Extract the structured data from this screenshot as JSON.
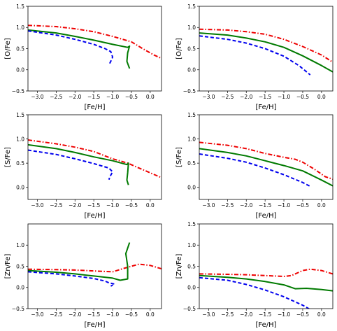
{
  "chart_data": [
    {
      "type": "line",
      "panel": "top-left",
      "xlabel": "[Fe/H]",
      "ylabel": "[O/Fe]",
      "xlim": [
        -3.25,
        0.3
      ],
      "ylim": [
        -0.5,
        1.5
      ],
      "xticks": [
        "-3.0",
        "-2.5",
        "-2.0",
        "-1.5",
        "-1.0",
        "-0.5",
        "0.0"
      ],
      "yticks": [
        "-0.5",
        "0.0",
        "0.5",
        "1.0",
        "1.5"
      ],
      "series": [
        {
          "style": "red-dashdot",
          "points": [
            [
              -3.25,
              1.05
            ],
            [
              -2.5,
              1.02
            ],
            [
              -2.0,
              0.97
            ],
            [
              -1.5,
              0.9
            ],
            [
              -1.0,
              0.79
            ],
            [
              -0.5,
              0.66
            ],
            [
              -0.2,
              0.5
            ],
            [
              0.1,
              0.35
            ],
            [
              0.3,
              0.27
            ]
          ]
        },
        {
          "style": "green-solid",
          "points": [
            [
              -3.25,
              0.94
            ],
            [
              -2.5,
              0.87
            ],
            [
              -2.0,
              0.79
            ],
            [
              -1.5,
              0.7
            ],
            [
              -1.0,
              0.6
            ],
            [
              -0.6,
              0.53
            ],
            [
              -0.55,
              0.56
            ],
            [
              -0.6,
              0.4
            ],
            [
              -0.62,
              0.2
            ],
            [
              -0.55,
              0.03
            ]
          ]
        },
        {
          "style": "blue-dashed",
          "points": [
            [
              -3.25,
              0.92
            ],
            [
              -2.5,
              0.82
            ],
            [
              -2.0,
              0.72
            ],
            [
              -1.5,
              0.6
            ],
            [
              -1.2,
              0.5
            ],
            [
              -1.05,
              0.43
            ],
            [
              -1.0,
              0.3
            ],
            [
              -1.05,
              0.2
            ],
            [
              -1.1,
              0.11
            ]
          ]
        }
      ]
    },
    {
      "type": "line",
      "panel": "top-right",
      "xlabel": "[Fe/H]",
      "ylabel": "[O/Fe]",
      "xlim": [
        -3.25,
        0.3
      ],
      "ylim": [
        -0.5,
        1.5
      ],
      "xticks": [
        "-3.0",
        "-2.5",
        "-2.0",
        "-1.5",
        "-1.0",
        "-0.5",
        "0.0"
      ],
      "yticks": [
        "-0.5",
        "0.0",
        "0.5",
        "1.0",
        "1.5"
      ],
      "series": [
        {
          "style": "red-dashdot",
          "points": [
            [
              -3.25,
              0.96
            ],
            [
              -2.5,
              0.94
            ],
            [
              -2.0,
              0.9
            ],
            [
              -1.5,
              0.84
            ],
            [
              -1.0,
              0.72
            ],
            [
              -0.5,
              0.55
            ],
            [
              0.0,
              0.35
            ],
            [
              0.3,
              0.18
            ]
          ]
        },
        {
          "style": "green-solid",
          "points": [
            [
              -3.25,
              0.87
            ],
            [
              -2.5,
              0.82
            ],
            [
              -2.0,
              0.75
            ],
            [
              -1.5,
              0.66
            ],
            [
              -1.0,
              0.53
            ],
            [
              -0.5,
              0.33
            ],
            [
              0.0,
              0.1
            ],
            [
              0.3,
              -0.05
            ]
          ]
        },
        {
          "style": "blue-dashed",
          "points": [
            [
              -3.25,
              0.8
            ],
            [
              -2.5,
              0.72
            ],
            [
              -2.0,
              0.63
            ],
            [
              -1.5,
              0.5
            ],
            [
              -1.0,
              0.32
            ],
            [
              -0.6,
              0.1
            ],
            [
              -0.3,
              -0.12
            ]
          ]
        }
      ]
    },
    {
      "type": "line",
      "panel": "middle-left",
      "xlabel": "[Fe/H]",
      "ylabel": "[S/Fe]",
      "xlim": [
        -3.25,
        0.3
      ],
      "ylim": [
        -0.25,
        1.5
      ],
      "xticks": [
        "-3.0",
        "-2.5",
        "-2.0",
        "-1.5",
        "-1.0",
        "-0.5",
        "0.0"
      ],
      "yticks": [
        "0.0",
        "0.5",
        "1.0",
        "1.5"
      ],
      "series": [
        {
          "style": "red-dashdot",
          "points": [
            [
              -3.25,
              0.98
            ],
            [
              -2.5,
              0.9
            ],
            [
              -2.0,
              0.83
            ],
            [
              -1.5,
              0.74
            ],
            [
              -1.2,
              0.65
            ],
            [
              -1.0,
              0.59
            ],
            [
              -0.6,
              0.5
            ],
            [
              -0.3,
              0.4
            ],
            [
              0.0,
              0.3
            ],
            [
              0.3,
              0.2
            ]
          ]
        },
        {
          "style": "green-solid",
          "points": [
            [
              -3.25,
              0.88
            ],
            [
              -2.5,
              0.8
            ],
            [
              -2.0,
              0.72
            ],
            [
              -1.5,
              0.63
            ],
            [
              -1.0,
              0.55
            ],
            [
              -0.62,
              0.47
            ],
            [
              -0.58,
              0.5
            ],
            [
              -0.6,
              0.3
            ],
            [
              -0.62,
              0.15
            ],
            [
              -0.58,
              0.05
            ]
          ]
        },
        {
          "style": "blue-dashed",
          "points": [
            [
              -3.25,
              0.77
            ],
            [
              -2.5,
              0.68
            ],
            [
              -2.0,
              0.59
            ],
            [
              -1.5,
              0.49
            ],
            [
              -1.1,
              0.4
            ],
            [
              -1.0,
              0.32
            ],
            [
              -1.05,
              0.25
            ],
            [
              -1.1,
              0.16
            ]
          ]
        }
      ]
    },
    {
      "type": "line",
      "panel": "middle-right",
      "xlabel": "[Fe/H]",
      "ylabel": "[S/Fe]",
      "xlim": [
        -3.25,
        0.3
      ],
      "ylim": [
        -0.25,
        1.5
      ],
      "xticks": [
        "-3.0",
        "-2.5",
        "-2.0",
        "-1.5",
        "-1.0",
        "-0.5",
        "0.0"
      ],
      "yticks": [
        "0.0",
        "0.5",
        "1.0",
        "1.5"
      ],
      "series": [
        {
          "style": "red-dashdot",
          "points": [
            [
              -3.25,
              0.93
            ],
            [
              -2.5,
              0.87
            ],
            [
              -2.0,
              0.8
            ],
            [
              -1.5,
              0.7
            ],
            [
              -1.0,
              0.62
            ],
            [
              -0.7,
              0.58
            ],
            [
              -0.5,
              0.52
            ],
            [
              -0.2,
              0.38
            ],
            [
              0.1,
              0.22
            ],
            [
              0.3,
              0.17
            ]
          ]
        },
        {
          "style": "green-solid",
          "points": [
            [
              -3.25,
              0.8
            ],
            [
              -2.5,
              0.72
            ],
            [
              -2.0,
              0.65
            ],
            [
              -1.5,
              0.55
            ],
            [
              -1.0,
              0.45
            ],
            [
              -0.5,
              0.34
            ],
            [
              0.0,
              0.15
            ],
            [
              0.3,
              0.03
            ]
          ]
        },
        {
          "style": "blue-dashed",
          "points": [
            [
              -3.25,
              0.69
            ],
            [
              -2.5,
              0.6
            ],
            [
              -2.0,
              0.52
            ],
            [
              -1.5,
              0.4
            ],
            [
              -1.0,
              0.26
            ],
            [
              -0.5,
              0.1
            ],
            [
              -0.3,
              0.02
            ]
          ]
        }
      ]
    },
    {
      "type": "line",
      "panel": "bottom-left",
      "xlabel": "[Fe/H]",
      "ylabel": "[Zn/Fe]",
      "xlim": [
        -3.25,
        0.3
      ],
      "ylim": [
        -0.5,
        1.5
      ],
      "xticks": [
        "-3.0",
        "-2.5",
        "-2.0",
        "-1.5",
        "-1.0",
        "-0.5",
        "0.0"
      ],
      "yticks": [
        "-0.5",
        "0.0",
        "0.5",
        "1.0"
      ],
      "series": [
        {
          "style": "red-dashdot",
          "points": [
            [
              -3.25,
              0.43
            ],
            [
              -2.5,
              0.42
            ],
            [
              -2.0,
              0.41
            ],
            [
              -1.5,
              0.39
            ],
            [
              -1.0,
              0.37
            ],
            [
              -0.7,
              0.45
            ],
            [
              -0.3,
              0.55
            ],
            [
              0.0,
              0.52
            ],
            [
              0.3,
              0.44
            ]
          ]
        },
        {
          "style": "green-solid",
          "points": [
            [
              -3.25,
              0.4
            ],
            [
              -2.5,
              0.36
            ],
            [
              -2.0,
              0.32
            ],
            [
              -1.5,
              0.27
            ],
            [
              -1.0,
              0.22
            ],
            [
              -0.8,
              0.17
            ],
            [
              -0.6,
              0.2
            ],
            [
              -0.6,
              0.5
            ],
            [
              -0.65,
              0.8
            ],
            [
              -0.55,
              1.06
            ]
          ]
        },
        {
          "style": "blue-dashed",
          "points": [
            [
              -3.25,
              0.37
            ],
            [
              -2.5,
              0.32
            ],
            [
              -2.0,
              0.27
            ],
            [
              -1.5,
              0.21
            ],
            [
              -1.2,
              0.15
            ],
            [
              -1.1,
              0.11
            ],
            [
              -0.95,
              0.08
            ],
            [
              -1.05,
              0.03
            ]
          ]
        }
      ]
    },
    {
      "type": "line",
      "panel": "bottom-right",
      "xlabel": "[Fe/H]",
      "ylabel": "[Zn/Fe]",
      "xlim": [
        -3.25,
        0.3
      ],
      "ylim": [
        -0.5,
        1.5
      ],
      "xticks": [
        "-3.0",
        "-2.5",
        "-2.0",
        "-1.5",
        "-1.0",
        "-0.5",
        "0.0"
      ],
      "yticks": [
        "-0.5",
        "0.0",
        "0.5",
        "1.0",
        "1.5"
      ],
      "series": [
        {
          "style": "red-dashdot",
          "points": [
            [
              -3.25,
              0.32
            ],
            [
              -2.5,
              0.31
            ],
            [
              -2.0,
              0.3
            ],
            [
              -1.5,
              0.28
            ],
            [
              -1.0,
              0.26
            ],
            [
              -0.8,
              0.28
            ],
            [
              -0.5,
              0.4
            ],
            [
              -0.3,
              0.43
            ],
            [
              0.0,
              0.4
            ],
            [
              0.3,
              0.32
            ]
          ]
        },
        {
          "style": "green-solid",
          "points": [
            [
              -3.25,
              0.28
            ],
            [
              -2.5,
              0.24
            ],
            [
              -2.0,
              0.2
            ],
            [
              -1.5,
              0.14
            ],
            [
              -1.0,
              0.06
            ],
            [
              -0.7,
              -0.03
            ],
            [
              -0.4,
              -0.02
            ],
            [
              0.0,
              -0.05
            ],
            [
              0.3,
              -0.08
            ]
          ]
        },
        {
          "style": "blue-dashed",
          "points": [
            [
              -3.25,
              0.23
            ],
            [
              -2.5,
              0.17
            ],
            [
              -2.0,
              0.07
            ],
            [
              -1.5,
              -0.06
            ],
            [
              -1.0,
              -0.22
            ],
            [
              -0.5,
              -0.42
            ],
            [
              -0.3,
              -0.52
            ]
          ]
        }
      ]
    }
  ],
  "series_styles": {
    "red-dashdot": {
      "color": "#ee0000",
      "dash": "6,2.5,1.5,2.5"
    },
    "green-solid": {
      "color": "#007a00",
      "dash": ""
    },
    "blue-dashed": {
      "color": "#0000ee",
      "dash": "5,3"
    }
  }
}
